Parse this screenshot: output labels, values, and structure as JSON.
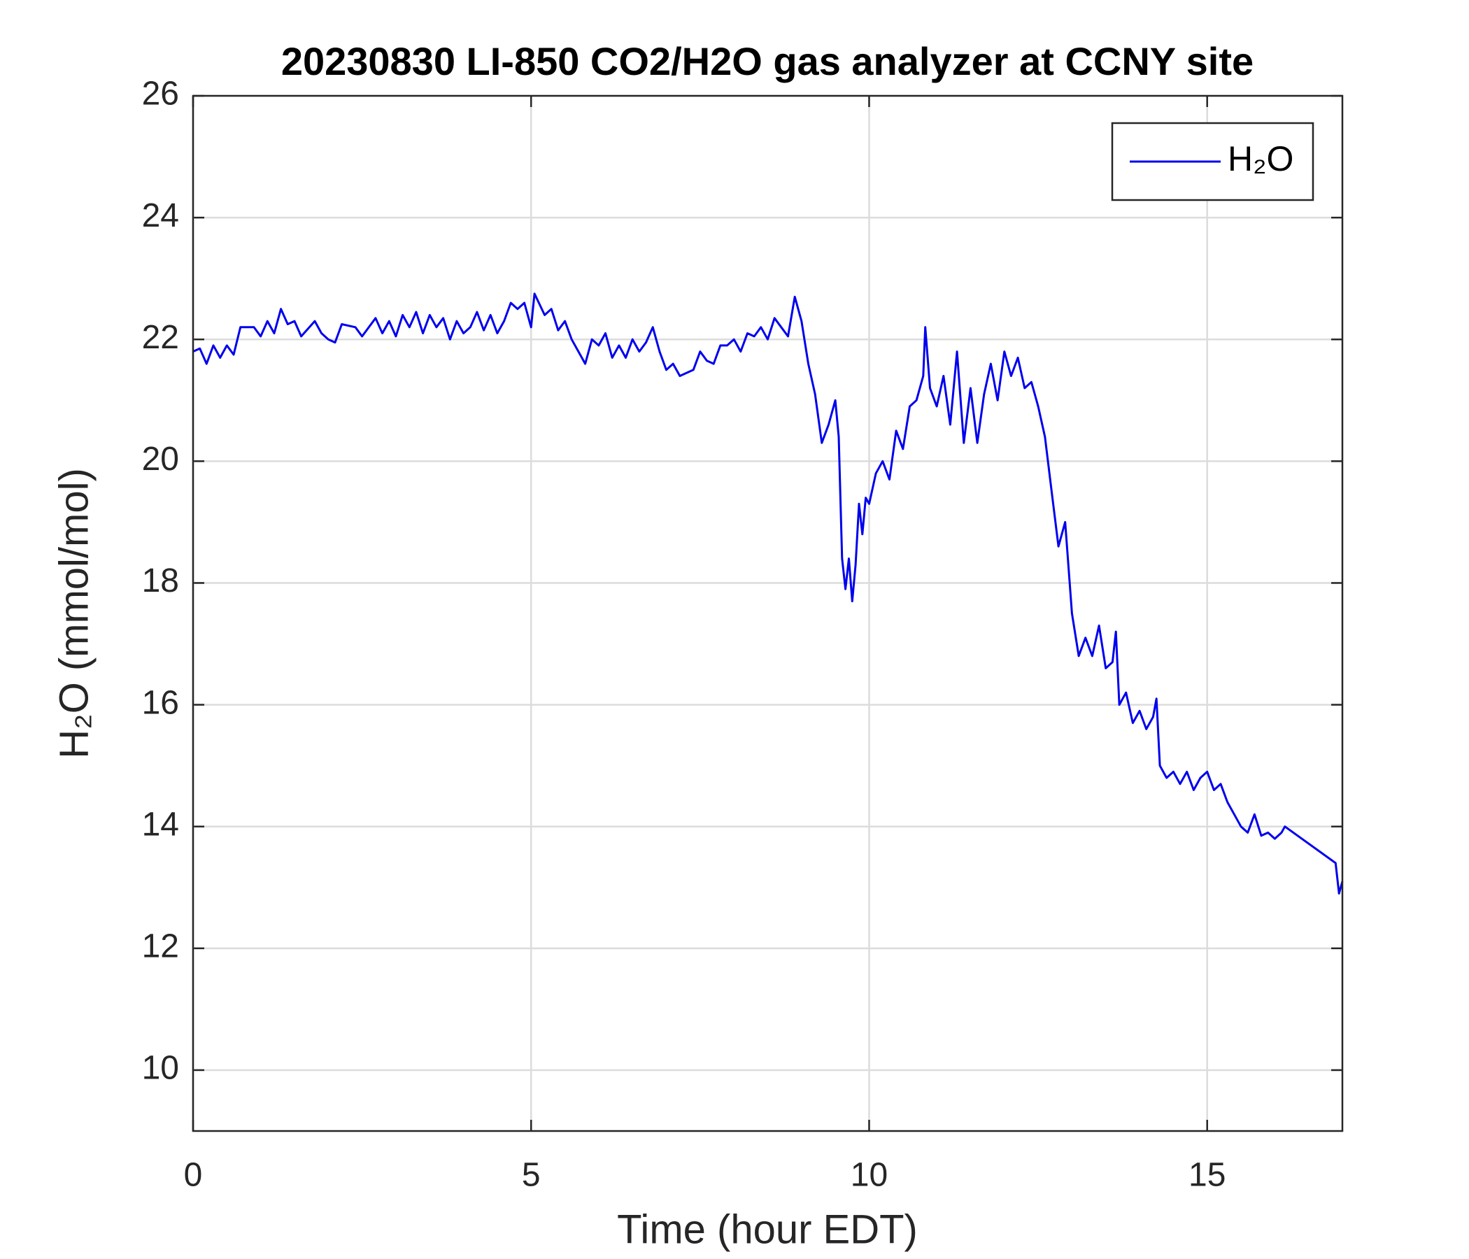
{
  "chart_data": {
    "type": "line",
    "title": "20230830 LI-850 CO2/H2O gas analyzer at CCNY site",
    "x_label": "Time (hour EDT)",
    "y_label": "H₂O (mmol/mol)",
    "xlim": [
      0,
      17
    ],
    "xticks": [
      0,
      5,
      10,
      15
    ],
    "ylim": [
      9,
      26
    ],
    "yticks": [
      10,
      12,
      14,
      16,
      18,
      20,
      22,
      24,
      26
    ],
    "grid": true,
    "legend": "upper right",
    "series": [
      {
        "name": "H₂O",
        "color": "#0000ee",
        "x": [
          0,
          0.1,
          0.2,
          0.3,
          0.4,
          0.5,
          0.6,
          0.7,
          0.9,
          1.0,
          1.1,
          1.2,
          1.3,
          1.4,
          1.5,
          1.6,
          1.8,
          1.9,
          2.0,
          2.1,
          2.2,
          2.4,
          2.5,
          2.7,
          2.8,
          2.9,
          3.0,
          3.1,
          3.2,
          3.3,
          3.4,
          3.5,
          3.6,
          3.7,
          3.8,
          3.9,
          4.0,
          4.1,
          4.2,
          4.3,
          4.4,
          4.5,
          4.6,
          4.7,
          4.8,
          4.9,
          5.0,
          5.05,
          5.2,
          5.3,
          5.4,
          5.5,
          5.6,
          5.7,
          5.8,
          5.9,
          6.0,
          6.1,
          6.2,
          6.3,
          6.4,
          6.5,
          6.6,
          6.7,
          6.8,
          6.9,
          7.0,
          7.1,
          7.2,
          7.3,
          7.4,
          7.5,
          7.6,
          7.7,
          7.8,
          7.9,
          8.0,
          8.1,
          8.2,
          8.3,
          8.4,
          8.5,
          8.6,
          8.7,
          8.8,
          8.9,
          9.0,
          9.1,
          9.2,
          9.3,
          9.4,
          9.5,
          9.55,
          9.6,
          9.65,
          9.7,
          9.75,
          9.8,
          9.85,
          9.9,
          9.95,
          10.0,
          10.1,
          10.2,
          10.3,
          10.4,
          10.5,
          10.6,
          10.7,
          10.8,
          10.83,
          10.9,
          11.0,
          11.1,
          11.2,
          11.3,
          11.4,
          11.5,
          11.6,
          11.7,
          11.8,
          11.9,
          12.0,
          12.1,
          12.2,
          12.3,
          12.4,
          12.5,
          12.6,
          12.7,
          12.8,
          12.9,
          13.0,
          13.1,
          13.2,
          13.3,
          13.4,
          13.5,
          13.6,
          13.65,
          13.7,
          13.8,
          13.9,
          14.0,
          14.1,
          14.2,
          14.25,
          14.3,
          14.4,
          14.5,
          14.6,
          14.7,
          14.8,
          14.9,
          15.0,
          15.1,
          15.2,
          15.3,
          15.4,
          15.5,
          15.6,
          15.7,
          15.8,
          15.9,
          16.0,
          16.1,
          16.15,
          16.9,
          16.95,
          17.0
        ],
        "values": [
          21.8,
          21.85,
          21.6,
          21.9,
          21.7,
          21.9,
          21.75,
          22.2,
          22.2,
          22.05,
          22.3,
          22.1,
          22.5,
          22.25,
          22.3,
          22.05,
          22.3,
          22.1,
          22.0,
          21.95,
          22.25,
          22.2,
          22.05,
          22.35,
          22.1,
          22.3,
          22.05,
          22.4,
          22.2,
          22.45,
          22.1,
          22.4,
          22.2,
          22.35,
          22.0,
          22.3,
          22.1,
          22.2,
          22.45,
          22.15,
          22.4,
          22.1,
          22.3,
          22.6,
          22.5,
          22.6,
          22.2,
          22.75,
          22.4,
          22.5,
          22.15,
          22.3,
          22.0,
          21.8,
          21.6,
          22.0,
          21.9,
          22.1,
          21.7,
          21.9,
          21.7,
          22.0,
          21.8,
          21.95,
          22.2,
          21.8,
          21.5,
          21.6,
          21.4,
          21.45,
          21.5,
          21.8,
          21.65,
          21.6,
          21.9,
          21.9,
          22.0,
          21.8,
          22.1,
          22.05,
          22.2,
          22.0,
          22.35,
          22.2,
          22.05,
          22.7,
          22.3,
          21.6,
          21.1,
          20.3,
          20.6,
          21.0,
          20.4,
          18.4,
          17.9,
          18.4,
          17.7,
          18.3,
          19.3,
          18.8,
          19.4,
          19.3,
          19.8,
          20.0,
          19.7,
          20.5,
          20.2,
          20.9,
          21.0,
          21.4,
          22.2,
          21.2,
          20.9,
          21.4,
          20.6,
          21.8,
          20.3,
          21.2,
          20.3,
          21.1,
          21.6,
          21.0,
          21.8,
          21.4,
          21.7,
          21.2,
          21.3,
          20.9,
          20.4,
          19.5,
          18.6,
          19.0,
          17.5,
          16.8,
          17.1,
          16.8,
          17.3,
          16.6,
          16.7,
          17.2,
          16.0,
          16.2,
          15.7,
          15.9,
          15.6,
          15.8,
          16.1,
          15.0,
          14.8,
          14.9,
          14.7,
          14.9,
          14.6,
          14.8,
          14.9,
          14.6,
          14.7,
          14.4,
          14.2,
          14.0,
          13.9,
          14.2,
          13.85,
          13.9,
          13.8,
          13.9,
          14.0,
          13.4,
          12.9,
          13.1
        ]
      }
    ]
  }
}
